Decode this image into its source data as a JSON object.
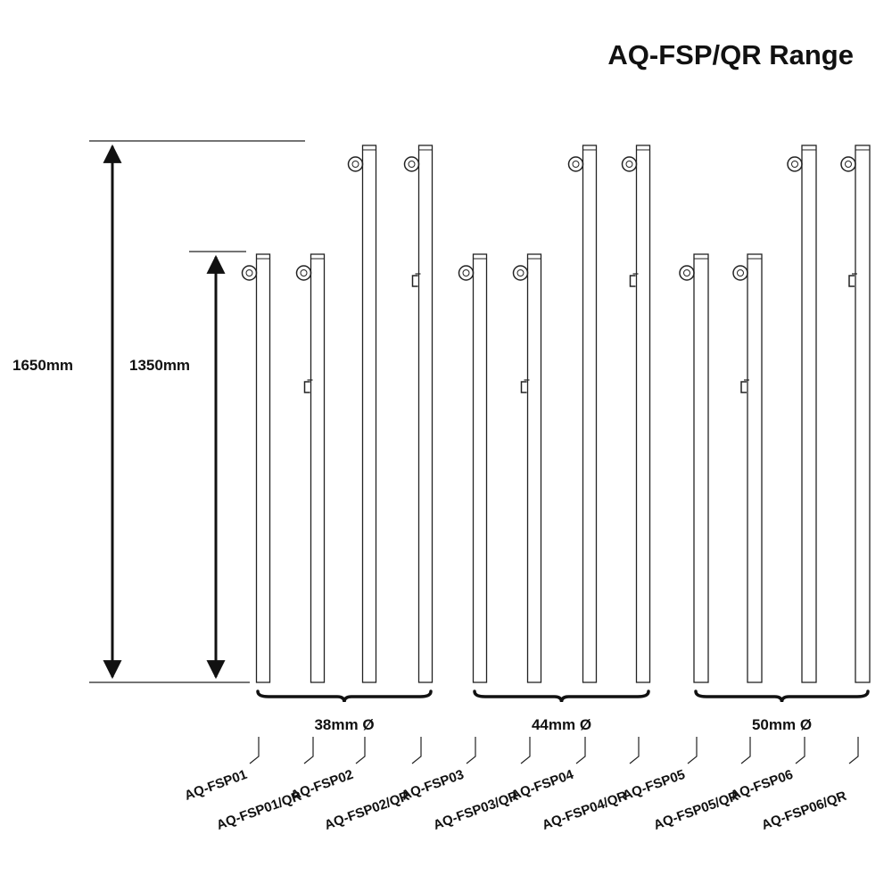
{
  "title": "AQ-FSP/QR Range",
  "dimensions": {
    "tall_label": "1650mm",
    "short_label": "1350mm"
  },
  "groups": [
    {
      "label": "38mm Ø"
    },
    {
      "label": "44mm Ø"
    },
    {
      "label": "50mm Ø"
    }
  ],
  "posts": [
    {
      "code": "AQ-FSP01",
      "height": "1350mm",
      "quick_release": false
    },
    {
      "code": "AQ-FSP01/QR",
      "height": "1350mm",
      "quick_release": true
    },
    {
      "code": "AQ-FSP02",
      "height": "1650mm",
      "quick_release": false
    },
    {
      "code": "AQ-FSP02/QR",
      "height": "1650mm",
      "quick_release": true
    },
    {
      "code": "AQ-FSP03",
      "height": "1350mm",
      "quick_release": false
    },
    {
      "code": "AQ-FSP03/QR",
      "height": "1350mm",
      "quick_release": true
    },
    {
      "code": "AQ-FSP04",
      "height": "1650mm",
      "quick_release": false
    },
    {
      "code": "AQ-FSP04/QR",
      "height": "1650mm",
      "quick_release": true
    },
    {
      "code": "AQ-FSP05",
      "height": "1350mm",
      "quick_release": false
    },
    {
      "code": "AQ-FSP05/QR",
      "height": "1350mm",
      "quick_release": true
    },
    {
      "code": "AQ-FSP06",
      "height": "1650mm",
      "quick_release": false
    },
    {
      "code": "AQ-FSP06/QR",
      "height": "1650mm",
      "quick_release": true
    }
  ],
  "colors": {
    "line": "#222222",
    "post_fill": "#ffffff",
    "text": "#111111"
  }
}
